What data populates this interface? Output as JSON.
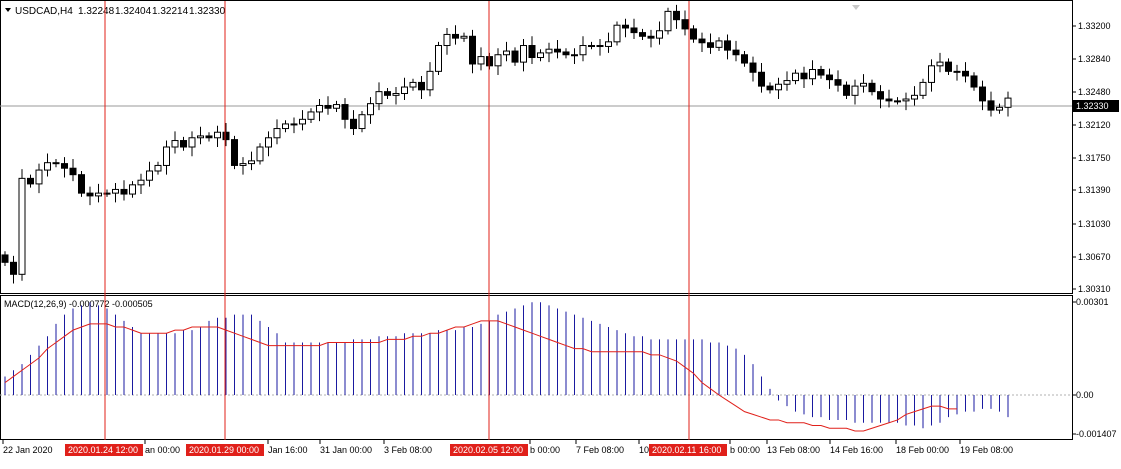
{
  "chart": {
    "symbol_label": "USDCAD,H4",
    "ohlc": [
      "1.32248",
      "1.32404",
      "1.32214",
      "1.32330"
    ],
    "current_price": "1.32330",
    "price_ticks": [
      "1.33200",
      "1.32840",
      "1.32480",
      "1.32120",
      "1.31750",
      "1.31390",
      "1.31030",
      "1.30670",
      "1.30310"
    ]
  },
  "indicator": {
    "label": "MACD(12,26,9) -0.000772 -0.000505",
    "ticks": [
      "0.00301",
      "0.00",
      "-0.001407"
    ],
    "histogram_color": "#1a1aa0",
    "signal_color": "#e0201a"
  },
  "time_axis": {
    "labels": [
      "22 Jan 2020",
      "an 00:00",
      "Jan 16:00",
      "31 Jan 00:00",
      "3 Feb 08:00",
      "b 00:00",
      "7 Feb 08:00",
      "10",
      "b 00:00",
      "13 Feb 08:00",
      "14 Feb 16:00",
      "18 Feb 00:00",
      "19 Feb 08:00"
    ],
    "markers": [
      "2020.01.24 12:00",
      "2020.01.29 00:00",
      "2020.02.05 12:00",
      "2020.02.11 16:00"
    ],
    "marker_color": "#e0201a"
  },
  "chart_data": [
    {
      "type": "candlestick",
      "title": "USDCAD,H4",
      "ylim": [
        1.3025,
        1.3335
      ],
      "series": [
        {
          "name": "USDCAD,H4",
          "close_prices": [
            1.3055,
            1.3042,
            1.3146,
            1.314,
            1.3155,
            1.3163,
            1.3162,
            1.3157,
            1.315,
            1.313,
            1.3127,
            1.313,
            1.313,
            1.3134,
            1.3129,
            1.3139,
            1.3144,
            1.3154,
            1.316,
            1.318,
            1.3187,
            1.318,
            1.319,
            1.3192,
            1.319,
            1.3196,
            1.3188,
            1.316,
            1.3162,
            1.3165,
            1.318,
            1.319,
            1.32,
            1.3205,
            1.3205,
            1.321,
            1.3218,
            1.3225,
            1.3222,
            1.3226,
            1.321,
            1.32,
            1.3215,
            1.3227,
            1.324,
            1.3236,
            1.3238,
            1.3245,
            1.325,
            1.3242,
            1.3262,
            1.329,
            1.3302,
            1.3298,
            1.33,
            1.327,
            1.3278,
            1.3268,
            1.328,
            1.3284,
            1.3272,
            1.329,
            1.3277,
            1.3282,
            1.3286,
            1.3283,
            1.328,
            1.328,
            1.329,
            1.329,
            1.3289,
            1.3294,
            1.3312,
            1.3309,
            1.3304,
            1.33,
            1.3298,
            1.3306,
            1.3327,
            1.3318,
            1.3308,
            1.3297,
            1.3293,
            1.3288,
            1.3295,
            1.3285,
            1.328,
            1.3271,
            1.3261,
            1.3246,
            1.3242,
            1.3248,
            1.3252,
            1.326,
            1.3254,
            1.3264,
            1.3258,
            1.3253,
            1.3247,
            1.3236,
            1.3246,
            1.3249,
            1.324,
            1.3232,
            1.323,
            1.323,
            1.3232,
            1.3236,
            1.325,
            1.3268,
            1.3272,
            1.3262,
            1.3262,
            1.3257,
            1.3245,
            1.323,
            1.322,
            1.3223,
            1.3233
          ]
        }
      ],
      "markers": [
        "2020.01.24 12:00",
        "2020.01.29 00:00",
        "2020.02.05 12:00",
        "2020.02.11 16:00"
      ]
    },
    {
      "type": "bar",
      "title": "MACD(12,26,9) -0.000772 -0.000505",
      "ylim": [
        -0.001407,
        0.00301
      ],
      "series": [
        {
          "name": "MACD",
          "values": [
            0.0006,
            0.0008,
            0.001,
            0.0013,
            0.0016,
            0.0019,
            0.0023,
            0.0026,
            0.0028,
            0.0029,
            0.003,
            0.0029,
            0.0028,
            0.0026,
            0.0024,
            0.0022,
            0.002,
            0.002,
            0.002,
            0.002,
            0.002,
            0.0021,
            0.0021,
            0.0022,
            0.0024,
            0.0025,
            0.0025,
            0.0026,
            0.0026,
            0.0026,
            0.0024,
            0.0022,
            0.002,
            0.0017,
            0.0017,
            0.0017,
            0.0017,
            0.0017,
            0.0017,
            0.0017,
            0.0017,
            0.0018,
            0.0018,
            0.0018,
            0.0019,
            0.0019,
            0.0019,
            0.002,
            0.002,
            0.002,
            0.002,
            0.0021,
            0.0021,
            0.0021,
            0.0022,
            0.0022,
            0.0023,
            0.0024,
            0.0026,
            0.0027,
            0.0028,
            0.0029,
            0.003,
            0.003,
            0.0029,
            0.0028,
            0.0027,
            0.0026,
            0.0025,
            0.0024,
            0.0023,
            0.0022,
            0.0021,
            0.002,
            0.0019,
            0.0019,
            0.0018,
            0.0018,
            0.0018,
            0.0018,
            0.0018,
            0.0018,
            0.0018,
            0.0017,
            0.0017,
            0.0016,
            0.0015,
            0.0013,
            0.001,
            0.0006,
            0.0002,
            -0.0002,
            -0.0004,
            -0.0006,
            -0.0007,
            -0.0008,
            -0.0008,
            -0.0009,
            -0.0009,
            -0.0009,
            -0.001,
            -0.001,
            -0.001,
            -0.001,
            -0.001,
            -0.001,
            -0.0011,
            -0.0011,
            -0.0012,
            -0.0011,
            -0.001,
            -0.0008,
            -0.0007,
            -0.0006,
            -0.0006,
            -0.0005,
            -0.0005,
            -0.0006,
            -0.0008
          ]
        },
        {
          "name": "Signal",
          "values": [
            0.0004,
            0.0006,
            0.0008,
            0.001,
            0.0012,
            0.0015,
            0.0017,
            0.0019,
            0.0021,
            0.0022,
            0.0023,
            0.0023,
            0.0023,
            0.0022,
            0.0022,
            0.0021,
            0.002,
            0.002,
            0.002,
            0.002,
            0.0021,
            0.0021,
            0.0022,
            0.0022,
            0.0022,
            0.0022,
            0.0021,
            0.002,
            0.0019,
            0.0018,
            0.0017,
            0.0016,
            0.0016,
            0.0016,
            0.0016,
            0.0016,
            0.0016,
            0.0016,
            0.0017,
            0.0017,
            0.0017,
            0.0017,
            0.0017,
            0.0017,
            0.0017,
            0.0018,
            0.0018,
            0.0018,
            0.0019,
            0.0019,
            0.002,
            0.002,
            0.0021,
            0.0022,
            0.0022,
            0.0023,
            0.0024,
            0.0024,
            0.0024,
            0.0023,
            0.0022,
            0.0021,
            0.002,
            0.0019,
            0.0018,
            0.0017,
            0.0016,
            0.0015,
            0.0015,
            0.0014,
            0.0014,
            0.0014,
            0.0014,
            0.0014,
            0.0014,
            0.0014,
            0.0013,
            0.0013,
            0.0012,
            0.0011,
            0.0009,
            0.0007,
            0.0004,
            0.0002,
            0.0,
            -0.0002,
            -0.0004,
            -0.0006,
            -0.0007,
            -0.0008,
            -0.0009,
            -0.0009,
            -0.001,
            -0.001,
            -0.001,
            -0.0011,
            -0.0011,
            -0.0012,
            -0.0012,
            -0.0012,
            -0.0013,
            -0.0013,
            -0.0012,
            -0.0011,
            -0.001,
            -0.0009,
            -0.0007,
            -0.0006,
            -0.0005,
            -0.0004,
            -0.0004,
            -0.0005,
            -0.0005
          ]
        }
      ]
    }
  ]
}
